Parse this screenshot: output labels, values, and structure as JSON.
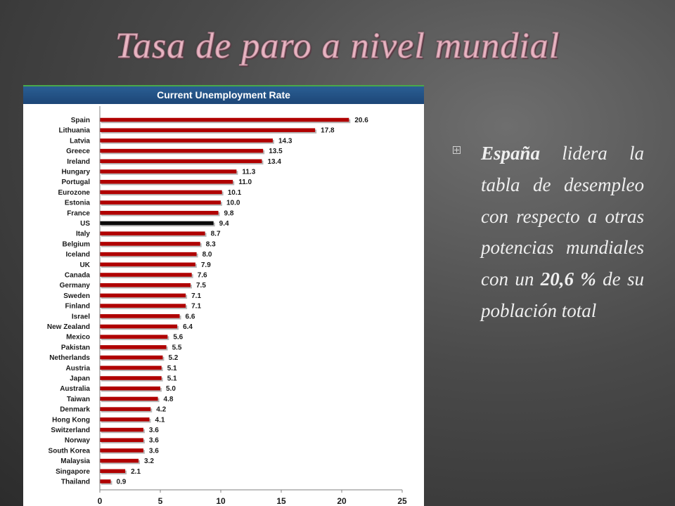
{
  "slide": {
    "title": "Tasa de paro a nivel mundial"
  },
  "bullet": {
    "parts": [
      {
        "text": "España",
        "bold": true
      },
      {
        "text": " lidera la tabla de desempleo con respecto a otras potencias mundiales con un ",
        "bold": false
      },
      {
        "text": "20,6 %",
        "bold": true
      },
      {
        "text": " de su población total",
        "bold": false
      }
    ]
  },
  "colors": {
    "bar": "#b00000",
    "highlight_bar": "#0a0a0a",
    "header_bg": "#1d4677"
  },
  "chart_data": {
    "type": "bar",
    "orientation": "horizontal",
    "title": "Current Unemployment Rate",
    "categories": [
      "Spain",
      "Lithuania",
      "Latvia",
      "Greece",
      "Ireland",
      "Hungary",
      "Portugal",
      "Eurozone",
      "Estonia",
      "France",
      "US",
      "Italy",
      "Belgium",
      "Iceland",
      "UK",
      "Canada",
      "Germany",
      "Sweden",
      "Finland",
      "Israel",
      "New Zealand",
      "Mexico",
      "Pakistan",
      "Netherlands",
      "Austria",
      "Japan",
      "Australia",
      "Taiwan",
      "Denmark",
      "Hong Kong",
      "Switzerland",
      "Norway",
      "South Korea",
      "Malaysia",
      "Singapore",
      "Thailand"
    ],
    "values": [
      20.6,
      17.8,
      14.3,
      13.5,
      13.4,
      11.3,
      11.0,
      10.1,
      10.0,
      9.8,
      9.4,
      8.7,
      8.3,
      8.0,
      7.9,
      7.6,
      7.5,
      7.1,
      7.1,
      6.6,
      6.4,
      5.6,
      5.5,
      5.2,
      5.1,
      5.1,
      5.0,
      4.8,
      4.2,
      4.1,
      3.6,
      3.6,
      3.6,
      3.2,
      2.1,
      0.9
    ],
    "value_labels": [
      "20.6",
      "17.8",
      "14.3",
      "13.5",
      "13.4",
      "11.3",
      "11.0",
      "10.1",
      "10.0",
      "9.8",
      "9.4",
      "8.7",
      "8.3",
      "8.0",
      "7.9",
      "7.6",
      "7.5",
      "7.1",
      "7.1",
      "6.6",
      "6.4",
      "5.6",
      "5.5",
      "5.2",
      "5.1",
      "5.1",
      "5.0",
      "4.8",
      "4.2",
      "4.1",
      "3.6",
      "3.6",
      "3.6",
      "3.2",
      "2.1",
      "0.9"
    ],
    "highlight": "US",
    "xlim": [
      0,
      25
    ],
    "xticks": [
      "0",
      "5",
      "10",
      "15",
      "20",
      "25"
    ],
    "grid": false
  }
}
